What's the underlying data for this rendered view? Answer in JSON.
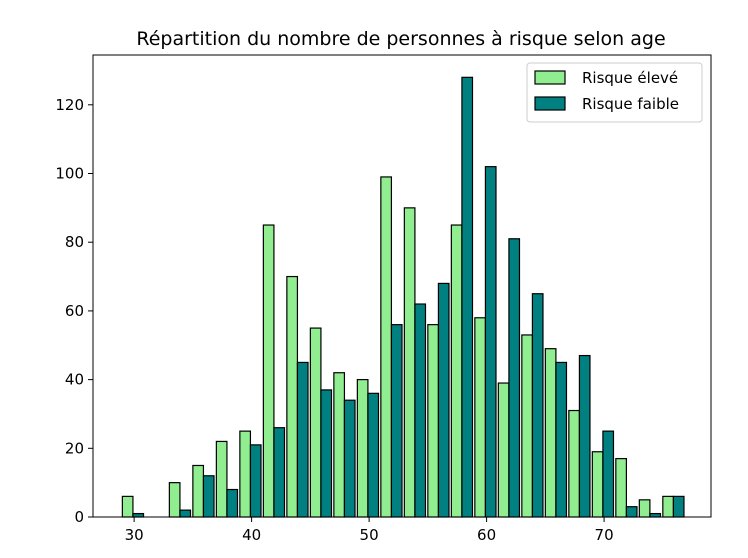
{
  "chart_data": {
    "type": "bar",
    "title": "Répartition du nombre de personnes à risque selon age",
    "xlabel": "",
    "ylabel": "",
    "xlim": [
      26.5,
      79.1
    ],
    "ylim": [
      0,
      134.5
    ],
    "xticks": [
      30,
      40,
      50,
      60,
      70
    ],
    "yticks": [
      0,
      20,
      40,
      60,
      80,
      100,
      120
    ],
    "grid": false,
    "legend_position": "top-right",
    "bin_starts": [
      29,
      31,
      33,
      35,
      37,
      39,
      41,
      43,
      45,
      47,
      49,
      51,
      53,
      55,
      57,
      59,
      61,
      63,
      65,
      67,
      69,
      71,
      73,
      75
    ],
    "series": [
      {
        "name": "Risque élevé",
        "color": "#90ee90",
        "values": [
          6,
          0,
          10,
          15,
          22,
          25,
          85,
          70,
          55,
          42,
          40,
          99,
          90,
          56,
          85,
          58,
          39,
          53,
          49,
          31,
          19,
          17,
          5,
          6
        ]
      },
      {
        "name": "Risque faible",
        "color": "#008080",
        "values": [
          1,
          0,
          2,
          12,
          8,
          21,
          26,
          45,
          37,
          34,
          36,
          56,
          62,
          68,
          128,
          102,
          81,
          65,
          45,
          47,
          25,
          3,
          1,
          6
        ]
      }
    ]
  }
}
